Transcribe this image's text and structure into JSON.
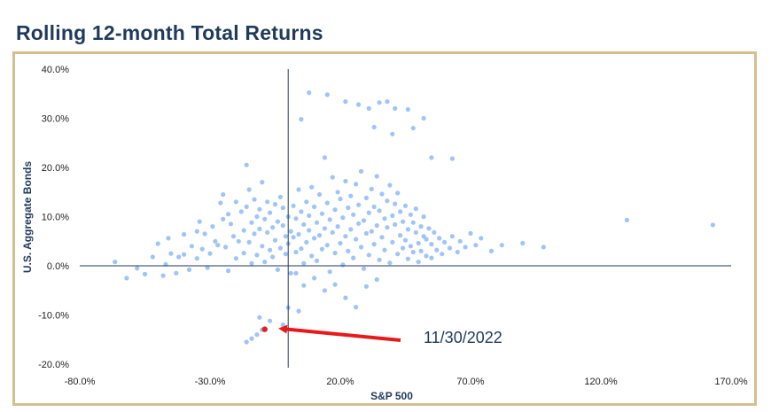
{
  "title": "Rolling 12-month Total Returns",
  "colors": {
    "title": "#1f3a5c",
    "frame": "#d4c08e",
    "points": "#7fb0f5",
    "highlight": "#e02020",
    "arrow": "#e8191b",
    "axes": "#1f3a5c"
  },
  "chart_data": {
    "type": "scatter",
    "xlabel": "S&P 500",
    "ylabel": "U.S. Aggregate Bonds",
    "xlim": [
      -80,
      170
    ],
    "ylim": [
      -20,
      40
    ],
    "x_ticks": [
      "-80.0%",
      "-30.0%",
      "20.0%",
      "70.0%",
      "120.0%",
      "170.0%"
    ],
    "x_tick_values": [
      -80,
      -30,
      20,
      70,
      120,
      170
    ],
    "y_ticks": [
      "40.0%",
      "30.0%",
      "20.0%",
      "10.0%",
      "0.0%",
      "-10.0%",
      "-20.0%"
    ],
    "y_tick_values": [
      40,
      30,
      20,
      10,
      0,
      -10,
      -20
    ],
    "grid": false,
    "series": [
      {
        "points": [
          [
            -66.5,
            0.8
          ],
          [
            -62,
            -2.5
          ],
          [
            -58,
            -0.5
          ],
          [
            -55,
            -1.7
          ],
          [
            -52,
            1.8
          ],
          [
            -50,
            4.5
          ],
          [
            -48,
            -2
          ],
          [
            -47,
            0.3
          ],
          [
            -46,
            5.6
          ],
          [
            -45,
            2.5
          ],
          [
            -43,
            -1.5
          ],
          [
            -42,
            1.8
          ],
          [
            -40,
            6.4
          ],
          [
            -40,
            2.3
          ],
          [
            -38,
            -0.8
          ],
          [
            -37,
            4
          ],
          [
            -35,
            7
          ],
          [
            -35,
            1.5
          ],
          [
            -34,
            9
          ],
          [
            -33,
            3.4
          ],
          [
            -32,
            6.5
          ],
          [
            -31,
            -0.4
          ],
          [
            -30,
            2.5
          ],
          [
            -29,
            8
          ],
          [
            -28,
            5
          ],
          [
            -27,
            4.2
          ],
          [
            -26,
            12.8
          ],
          [
            -25,
            14.5
          ],
          [
            -25,
            9.5
          ],
          [
            -24,
            3.8
          ],
          [
            -23,
            10.5
          ],
          [
            -23,
            -1
          ],
          [
            -22,
            8.5
          ],
          [
            -21,
            6
          ],
          [
            -20,
            13
          ],
          [
            -20,
            1.5
          ],
          [
            -19,
            5
          ],
          [
            -18,
            11
          ],
          [
            -17,
            7.2
          ],
          [
            -17,
            2.6
          ],
          [
            -16,
            12
          ],
          [
            -16,
            20.5
          ],
          [
            -15,
            15.5
          ],
          [
            -15,
            4.8
          ],
          [
            -14,
            8.8
          ],
          [
            -14,
            0.5
          ],
          [
            -13,
            13.5
          ],
          [
            -13,
            6.5
          ],
          [
            -12,
            10
          ],
          [
            -12,
            2.2
          ],
          [
            -11,
            7.5
          ],
          [
            -11,
            11.5
          ],
          [
            -10,
            17
          ],
          [
            -10,
            4
          ],
          [
            -9,
            9.5
          ],
          [
            -9,
            0.8
          ],
          [
            -8,
            13
          ],
          [
            -8,
            6.8
          ],
          [
            -7,
            3.2
          ],
          [
            -7,
            10.8
          ],
          [
            -6,
            7.8
          ],
          [
            -6,
            1.8
          ],
          [
            -5,
            12.5
          ],
          [
            -5,
            5.2
          ],
          [
            -4,
            9
          ],
          [
            -4,
            -0.8
          ],
          [
            -3,
            14
          ],
          [
            -3,
            3.6
          ],
          [
            -2,
            8.2
          ],
          [
            -2,
            11.8
          ],
          [
            -1,
            6
          ],
          [
            -1,
            2.4
          ],
          [
            0,
            10
          ],
          [
            0,
            4.5
          ],
          [
            1,
            7
          ],
          [
            1,
            -1.5
          ],
          [
            2,
            12.2
          ],
          [
            2,
            5.8
          ],
          [
            3,
            9.6
          ],
          [
            3,
            2.8
          ],
          [
            4,
            15.5
          ],
          [
            4,
            6.4
          ],
          [
            5,
            11
          ],
          [
            5,
            3.5
          ],
          [
            6,
            8.4
          ],
          [
            6,
            0.5
          ],
          [
            7,
            13
          ],
          [
            7,
            4.8
          ],
          [
            8,
            10.2
          ],
          [
            8,
            7.2
          ],
          [
            9,
            2
          ],
          [
            9,
            16
          ],
          [
            10,
            12
          ],
          [
            10,
            5.6
          ],
          [
            11,
            8.8
          ],
          [
            11,
            1
          ],
          [
            12,
            14.5
          ],
          [
            12,
            6.2
          ],
          [
            13,
            10.6
          ],
          [
            13,
            3.4
          ],
          [
            14,
            22
          ],
          [
            14,
            7.6
          ],
          [
            15,
            12.8
          ],
          [
            15,
            4.2
          ],
          [
            16,
            9.4
          ],
          [
            16,
            -1.2
          ],
          [
            17,
            18
          ],
          [
            17,
            6.8
          ],
          [
            18,
            11.4
          ],
          [
            18,
            2.6
          ],
          [
            19,
            15
          ],
          [
            19,
            8
          ],
          [
            20,
            13.6
          ],
          [
            20,
            4.6
          ],
          [
            21,
            9.8
          ],
          [
            21,
            0.2
          ],
          [
            22,
            17.2
          ],
          [
            22,
            6
          ],
          [
            23,
            11.8
          ],
          [
            23,
            3
          ],
          [
            24,
            14.2
          ],
          [
            24,
            7.4
          ],
          [
            25,
            10.4
          ],
          [
            25,
            1.6
          ],
          [
            26,
            16.6
          ],
          [
            26,
            5.4
          ],
          [
            27,
            12.4
          ],
          [
            27,
            8.6
          ],
          [
            28,
            3.8
          ],
          [
            28,
            19.2
          ],
          [
            29,
            9.2
          ],
          [
            29,
            -0.6
          ],
          [
            30,
            13.8
          ],
          [
            30,
            6.6
          ],
          [
            31,
            10.8
          ],
          [
            31,
            2.2
          ],
          [
            32,
            15.6
          ],
          [
            32,
            7
          ],
          [
            33,
            12
          ],
          [
            33,
            4.4
          ],
          [
            34,
            8.2
          ],
          [
            34,
            18.2
          ],
          [
            35,
            11.2
          ],
          [
            35,
            1.2
          ],
          [
            36,
            14.6
          ],
          [
            36,
            5.8
          ],
          [
            37,
            9.6
          ],
          [
            37,
            3.2
          ],
          [
            38,
            13.2
          ],
          [
            38,
            7.8
          ],
          [
            39,
            16.4
          ],
          [
            39,
            0.6
          ],
          [
            40,
            10.2
          ],
          [
            40,
            4.8
          ],
          [
            41,
            12.6
          ],
          [
            41,
            8.4
          ],
          [
            42,
            2.4
          ],
          [
            42,
            14.8
          ],
          [
            43,
            6.2
          ],
          [
            43,
            11
          ],
          [
            44,
            3.6
          ],
          [
            44,
            9
          ],
          [
            45,
            5.2
          ],
          [
            45,
            12.2
          ],
          [
            46,
            1.4
          ],
          [
            46,
            7.4
          ],
          [
            47,
            10.4
          ],
          [
            47,
            4
          ],
          [
            48,
            8.8
          ],
          [
            48,
            2.8
          ],
          [
            49,
            6.8
          ],
          [
            49,
            11.6
          ],
          [
            50,
            4.6
          ],
          [
            50,
            0.8
          ],
          [
            51,
            8
          ],
          [
            51,
            3
          ],
          [
            52,
            6
          ],
          [
            52,
            10
          ],
          [
            53,
            2
          ],
          [
            53,
            5.4
          ],
          [
            54,
            7.6
          ],
          [
            55,
            1.6
          ],
          [
            55,
            4.4
          ],
          [
            56,
            6.8
          ],
          [
            57,
            3.2
          ],
          [
            58,
            5.6
          ],
          [
            59,
            2.4
          ],
          [
            60,
            4.8
          ],
          [
            62,
            3.6
          ],
          [
            63,
            6
          ],
          [
            65,
            2.8
          ],
          [
            66,
            5
          ],
          [
            68,
            3.8
          ],
          [
            70,
            6.6
          ],
          [
            72,
            4.2
          ],
          [
            74,
            5.6
          ],
          [
            78,
            3
          ],
          [
            82,
            4.2
          ],
          [
            90,
            4.6
          ],
          [
            98,
            3.8
          ],
          [
            130,
            9.3
          ],
          [
            163,
            8.3
          ],
          [
            8,
            35.2
          ],
          [
            15,
            34.8
          ],
          [
            22,
            33.4
          ],
          [
            27,
            32.8
          ],
          [
            31,
            32
          ],
          [
            35,
            33.2
          ],
          [
            38,
            33.4
          ],
          [
            41,
            32
          ],
          [
            46,
            31.8
          ],
          [
            52,
            30
          ],
          [
            5,
            29.8
          ],
          [
            33,
            28.2
          ],
          [
            40,
            26.8
          ],
          [
            48,
            28
          ],
          [
            55,
            22
          ],
          [
            63,
            21.8
          ],
          [
            0,
            -8.5
          ],
          [
            3,
            -1.5
          ],
          [
            4,
            -9.2
          ],
          [
            6,
            -4
          ],
          [
            10,
            -2.5
          ],
          [
            14,
            -5
          ],
          [
            18,
            -3.8
          ],
          [
            22,
            -6.5
          ],
          [
            26,
            -8.4
          ],
          [
            30,
            -4.2
          ],
          [
            34,
            -2.8
          ],
          [
            -2,
            -12
          ],
          [
            -7,
            -11.2
          ],
          [
            -10,
            -13
          ],
          [
            -11,
            -10.5
          ],
          [
            -12,
            -14
          ],
          [
            -14,
            -14.8
          ],
          [
            -16,
            -15.5
          ]
        ]
      }
    ],
    "highlight_point": {
      "x": -9,
      "y": -12.9,
      "label": "11/30/2022"
    }
  }
}
